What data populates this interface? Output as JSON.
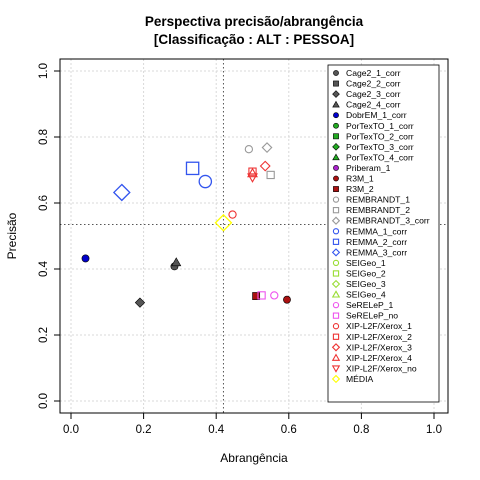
{
  "chart_data": {
    "type": "scatter",
    "title": "Perspectiva precisão/abrangência",
    "subtitle": "[Classificação : ALT : PESSOA]",
    "xlabel": "Abrangência",
    "ylabel": "Precisão",
    "xlim": [
      0,
      1
    ],
    "ylim": [
      0,
      1
    ],
    "xticks": [
      "0.0",
      "0.2",
      "0.4",
      "0.6",
      "0.8",
      "1.0"
    ],
    "yticks": [
      "0.0",
      "0.2",
      "0.4",
      "0.6",
      "0.8",
      "1.0"
    ],
    "grid": true,
    "reference_lines": {
      "x": 0.42,
      "y": 0.535
    },
    "legend_position": "right",
    "series": [
      {
        "name": "Cage2_1_corr",
        "color": "#555555",
        "marker": "circle",
        "filled": true,
        "points": [
          [
            0.285,
            0.408
          ]
        ]
      },
      {
        "name": "Cage2_2_corr",
        "color": "#555555",
        "marker": "square",
        "filled": true,
        "points": []
      },
      {
        "name": "Cage2_3_corr",
        "color": "#555555",
        "marker": "diamond",
        "filled": true,
        "points": [
          [
            0.19,
            0.298
          ]
        ]
      },
      {
        "name": "Cage2_4_corr",
        "color": "#555555",
        "marker": "triangle",
        "filled": true,
        "points": [
          [
            0.29,
            0.42
          ]
        ]
      },
      {
        "name": "DobrEM_1_corr",
        "color": "#0000cc",
        "marker": "circle",
        "filled": true,
        "points": [
          [
            0.04,
            0.432
          ]
        ]
      },
      {
        "name": "PorTexTO_1_corr",
        "color": "#22aa22",
        "marker": "circle",
        "filled": true,
        "points": []
      },
      {
        "name": "PorTexTO_2_corr",
        "color": "#22aa22",
        "marker": "square",
        "filled": true,
        "points": []
      },
      {
        "name": "PorTexTO_3_corr",
        "color": "#22aa22",
        "marker": "diamond",
        "filled": true,
        "points": []
      },
      {
        "name": "PorTexTO_4_corr",
        "color": "#22aa22",
        "marker": "triangle",
        "filled": true,
        "points": []
      },
      {
        "name": "Priberam_1",
        "color": "#aa22cc",
        "marker": "circle",
        "filled": true,
        "points": []
      },
      {
        "name": "R3M_1",
        "color": "#aa1111",
        "marker": "circle",
        "filled": true,
        "points": [
          [
            0.595,
            0.307
          ]
        ]
      },
      {
        "name": "R3M_2",
        "color": "#aa1111",
        "marker": "square",
        "filled": true,
        "points": [
          [
            0.51,
            0.318
          ]
        ]
      },
      {
        "name": "REMBRANDT_1",
        "color": "#999999",
        "marker": "circle",
        "filled": false,
        "points": [
          [
            0.49,
            0.763
          ]
        ]
      },
      {
        "name": "REMBRANDT_2",
        "color": "#999999",
        "marker": "square",
        "filled": false,
        "points": [
          [
            0.55,
            0.685
          ]
        ]
      },
      {
        "name": "REMBRANDT_3_corr",
        "color": "#999999",
        "marker": "diamond",
        "filled": false,
        "points": [
          [
            0.54,
            0.768
          ]
        ]
      },
      {
        "name": "REMMA_1_corr",
        "color": "#3355ee",
        "marker": "circle",
        "filled": false,
        "points": [
          [
            0.37,
            0.665
          ]
        ]
      },
      {
        "name": "REMMA_2_corr",
        "color": "#3355ee",
        "marker": "square",
        "filled": false,
        "points": [
          [
            0.335,
            0.705
          ]
        ]
      },
      {
        "name": "REMMA_3_corr",
        "color": "#3355ee",
        "marker": "diamond",
        "filled": false,
        "points": [
          [
            0.14,
            0.632
          ]
        ]
      },
      {
        "name": "SEIGeo_1",
        "color": "#99dd33",
        "marker": "circle",
        "filled": false,
        "points": []
      },
      {
        "name": "SEIGeo_2",
        "color": "#99dd33",
        "marker": "square",
        "filled": false,
        "points": []
      },
      {
        "name": "SEIGeo_3",
        "color": "#99dd33",
        "marker": "diamond",
        "filled": false,
        "points": []
      },
      {
        "name": "SEIGeo_4",
        "color": "#99dd33",
        "marker": "triangle",
        "filled": false,
        "points": []
      },
      {
        "name": "SeRELeP_1",
        "color": "#ee55ee",
        "marker": "circle",
        "filled": false,
        "points": [
          [
            0.56,
            0.32
          ]
        ]
      },
      {
        "name": "SeRELeP_no",
        "color": "#ee55ee",
        "marker": "square",
        "filled": false,
        "points": [
          [
            0.525,
            0.32
          ]
        ]
      },
      {
        "name": "XIP-L2F/Xerox_1",
        "color": "#ee3333",
        "marker": "circle",
        "filled": false,
        "points": [
          [
            0.445,
            0.565
          ]
        ]
      },
      {
        "name": "XIP-L2F/Xerox_2",
        "color": "#ee3333",
        "marker": "square",
        "filled": false,
        "points": [
          [
            0.5,
            0.695
          ]
        ]
      },
      {
        "name": "XIP-L2F/Xerox_3",
        "color": "#ee3333",
        "marker": "diamond",
        "filled": false,
        "points": [
          [
            0.535,
            0.712
          ]
        ]
      },
      {
        "name": "XIP-L2F/Xerox_4",
        "color": "#ee3333",
        "marker": "triangle",
        "filled": false,
        "points": [
          [
            0.5,
            0.69
          ]
        ]
      },
      {
        "name": "XIP-L2F/Xerox_no",
        "color": "#ee3333",
        "marker": "triangle-down",
        "filled": false,
        "points": [
          [
            0.5,
            0.678
          ]
        ]
      },
      {
        "name": "MÉDIA",
        "color": "#ffff00",
        "marker": "diamond",
        "filled": false,
        "points": [
          [
            0.42,
            0.54
          ]
        ]
      }
    ],
    "emphasized_points": [
      {
        "series": "REMMA_1_corr",
        "scale": 1.7
      },
      {
        "series": "REMMA_2_corr",
        "scale": 1.7
      },
      {
        "series": "REMMA_3_corr",
        "scale": 1.7
      },
      {
        "series": "MÉDIA",
        "scale": 1.7
      }
    ]
  }
}
